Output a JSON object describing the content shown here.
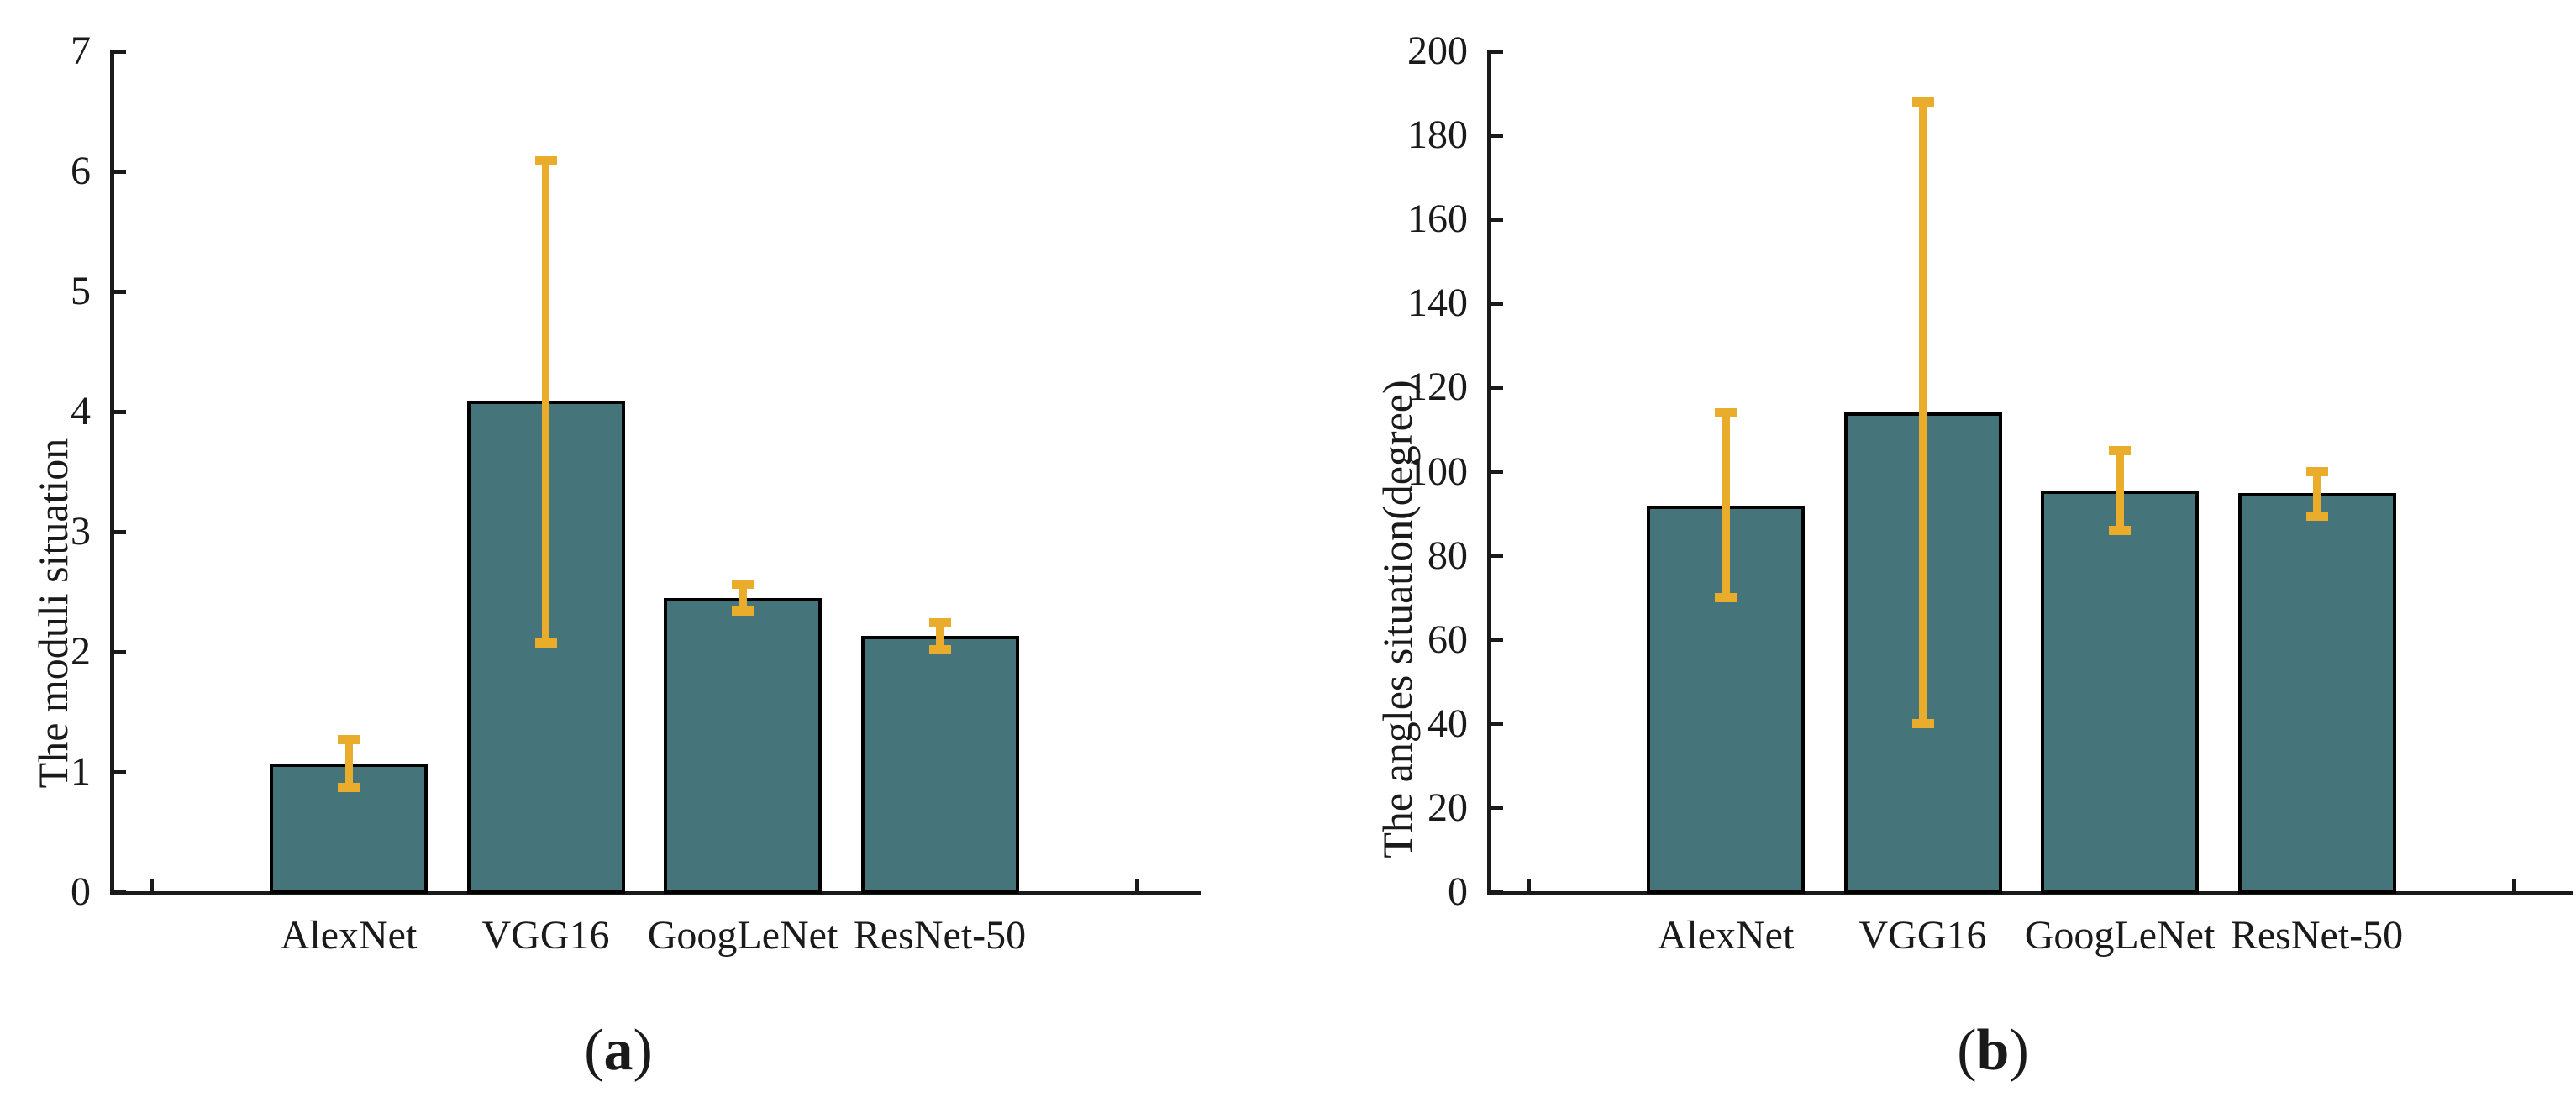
{
  "figure": {
    "background": "#ffffff",
    "colors": {
      "bar_fill": "#45747A",
      "bar_edge": "#000000",
      "error_bar": "#E9AC2B",
      "axis": "#1a1a1a",
      "text": "#1a1a1a"
    },
    "captions": [
      {
        "prefix": "(",
        "letter": "a",
        "suffix": ")"
      },
      {
        "prefix": "(",
        "letter": "b",
        "suffix": ")"
      }
    ]
  },
  "chart_data": [
    {
      "type": "bar",
      "title": "",
      "xlabel": "",
      "ylabel": "The moduli situation",
      "categories": [
        "AlexNet",
        "VGG16",
        "GoogLeNet",
        "ResNet-50"
      ],
      "values": [
        1.07,
        4.09,
        2.45,
        2.13
      ],
      "error_low": [
        0.87,
        2.07,
        2.34,
        2.02
      ],
      "error_high": [
        1.27,
        6.09,
        2.56,
        2.24
      ],
      "ylim": [
        0,
        7
      ],
      "yticks": [
        0,
        1,
        2,
        3,
        4,
        5,
        6,
        7
      ],
      "grid": false,
      "legend": null,
      "caption": "(a)"
    },
    {
      "type": "bar",
      "title": "",
      "xlabel": "",
      "ylabel": "The angles situation(degree)",
      "categories": [
        "AlexNet",
        "VGG16",
        "GoogLeNet",
        "ResNet-50"
      ],
      "values": [
        92,
        114,
        95.5,
        95
      ],
      "error_low": [
        70,
        40,
        86,
        89.5
      ],
      "error_high": [
        114,
        188,
        105,
        100
      ],
      "ylim": [
        0,
        200
      ],
      "yticks": [
        0,
        20,
        40,
        60,
        80,
        100,
        120,
        140,
        160,
        180,
        200
      ],
      "grid": false,
      "legend": null,
      "caption": "(b)"
    }
  ]
}
